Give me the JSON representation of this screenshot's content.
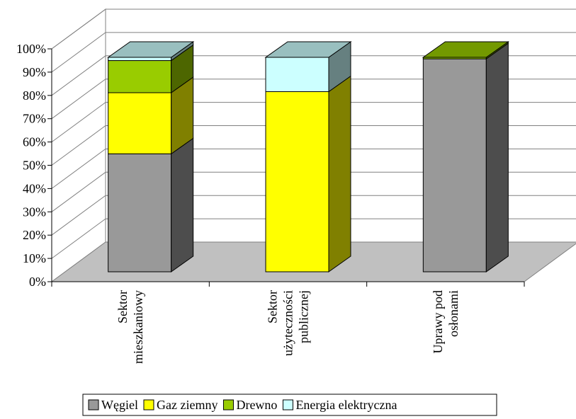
{
  "chart_data": {
    "type": "bar",
    "stacked": "percent",
    "three_d": true,
    "categories": [
      [
        "Sektor",
        "mieszkaniowy"
      ],
      [
        "Sektor",
        "użyteczności",
        "publicznej"
      ],
      [
        "Uprawy pod",
        "osłonami"
      ]
    ],
    "series": [
      {
        "name": "Węgiel",
        "color": "#999999",
        "values": [
          55,
          0,
          99.3
        ]
      },
      {
        "name": "Gaz ziemny",
        "color": "#ffff00",
        "values": [
          28.5,
          84,
          0
        ]
      },
      {
        "name": "Drewno",
        "color": "#99cc00",
        "values": [
          15,
          0,
          0.7
        ]
      },
      {
        "name": "Energia elektryczna",
        "color": "#ccffff",
        "values": [
          1.5,
          16,
          0
        ]
      }
    ],
    "y_ticks": [
      "0%",
      "10%",
      "20%",
      "30%",
      "40%",
      "50%",
      "60%",
      "70%",
      "80%",
      "90%",
      "100%"
    ],
    "ylim": [
      0,
      100
    ],
    "grid": true,
    "legend_position": "bottom",
    "floor_color": "#c0c0c0",
    "wall_color": "#ffffff"
  }
}
